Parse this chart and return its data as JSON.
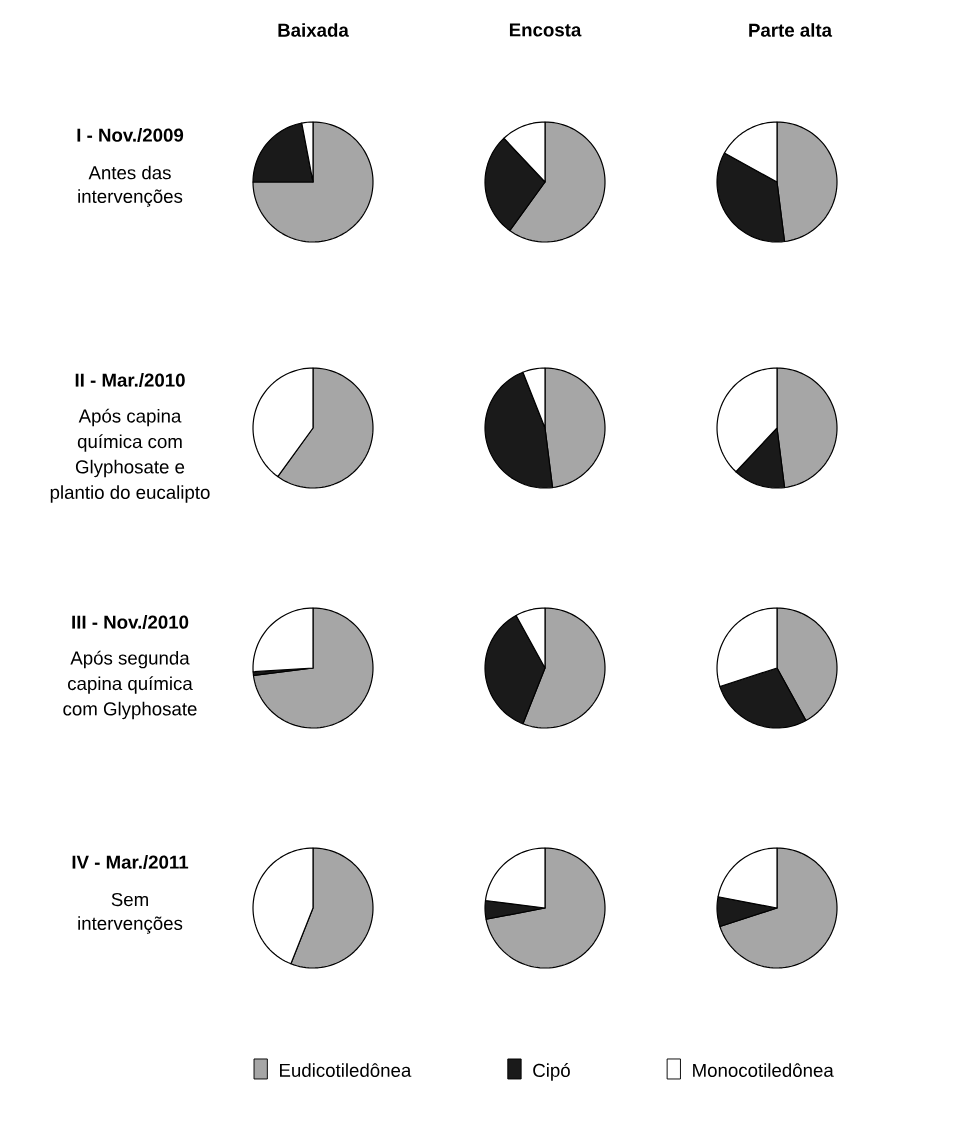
{
  "chart_data": [
    {
      "type": "pie",
      "title": "Baixada",
      "annotations": [
        "I - Nov./2009",
        "Antes das",
        "intervenções"
      ],
      "categories": [
        null,
        null,
        null
      ],
      "values": [
        75,
        22,
        3
      ],
      "colors": [
        "#a6a6a6",
        "#1a1a1a",
        "#ffffff"
      ]
    },
    {
      "type": "pie",
      "title": "Encosta",
      "categories": [
        null,
        null,
        null
      ],
      "values": [
        60,
        28,
        12
      ],
      "colors": [
        "#a6a6a6",
        "#1a1a1a",
        "#ffffff"
      ]
    },
    {
      "type": "pie",
      "title": "Parte alta",
      "categories": [
        null,
        null,
        null
      ],
      "values": [
        48,
        35,
        17
      ],
      "colors": [
        "#a6a6a6",
        "#1a1a1a",
        "#ffffff"
      ]
    },
    {
      "type": "pie",
      "annotations": [
        "II - Mar./2010",
        "Após capina",
        "química com",
        "Glyphosate e",
        "plantio do eucalipto"
      ],
      "categories": [
        null,
        null,
        null
      ],
      "values": [
        60,
        0,
        40
      ],
      "colors": [
        "#a6a6a6",
        "#1a1a1a",
        "#ffffff"
      ]
    },
    {
      "type": "pie",
      "categories": [
        null,
        null,
        null
      ],
      "values": [
        48,
        46,
        6
      ],
      "colors": [
        "#a6a6a6",
        "#1a1a1a",
        "#ffffff"
      ]
    },
    {
      "type": "pie",
      "categories": [
        null,
        null,
        null
      ],
      "values": [
        48,
        14,
        38
      ],
      "colors": [
        "#a6a6a6",
        "#1a1a1a",
        "#ffffff"
      ]
    },
    {
      "type": "pie",
      "annotations": [
        "III - Nov./2010",
        "Após segunda",
        "capina química",
        "com Glyphosate"
      ],
      "categories": [
        null,
        null,
        null
      ],
      "values": [
        73,
        1,
        26
      ],
      "colors": [
        "#a6a6a6",
        "#1a1a1a",
        "#ffffff"
      ]
    },
    {
      "type": "pie",
      "categories": [
        null,
        null,
        null
      ],
      "values": [
        56,
        36,
        8
      ],
      "colors": [
        "#a6a6a6",
        "#1a1a1a",
        "#ffffff"
      ]
    },
    {
      "type": "pie",
      "categories": [
        null,
        null,
        null
      ],
      "values": [
        42,
        28,
        30
      ],
      "colors": [
        "#a6a6a6",
        "#1a1a1a",
        "#ffffff"
      ]
    },
    {
      "type": "pie",
      "annotations": [
        "IV - Mar./2011",
        "Sem",
        "intervenções"
      ],
      "categories": [
        "Eudicotiledônea",
        "Cipó",
        "Monocotiledônea"
      ],
      "values": [
        56,
        0,
        44
      ],
      "colors": [
        "#a6a6a6",
        "#1a1a1a",
        "#ffffff"
      ],
      "legend": "bottom"
    },
    {
      "type": "pie",
      "categories": [
        null,
        null,
        null
      ],
      "values": [
        72,
        5,
        23
      ],
      "colors": [
        "#a6a6a6",
        "#1a1a1a",
        "#ffffff"
      ]
    },
    {
      "type": "pie",
      "categories": [
        null,
        null,
        null
      ],
      "values": [
        70,
        8,
        22
      ],
      "colors": [
        "#a6a6a6",
        "#1a1a1a",
        "#ffffff"
      ]
    }
  ]
}
